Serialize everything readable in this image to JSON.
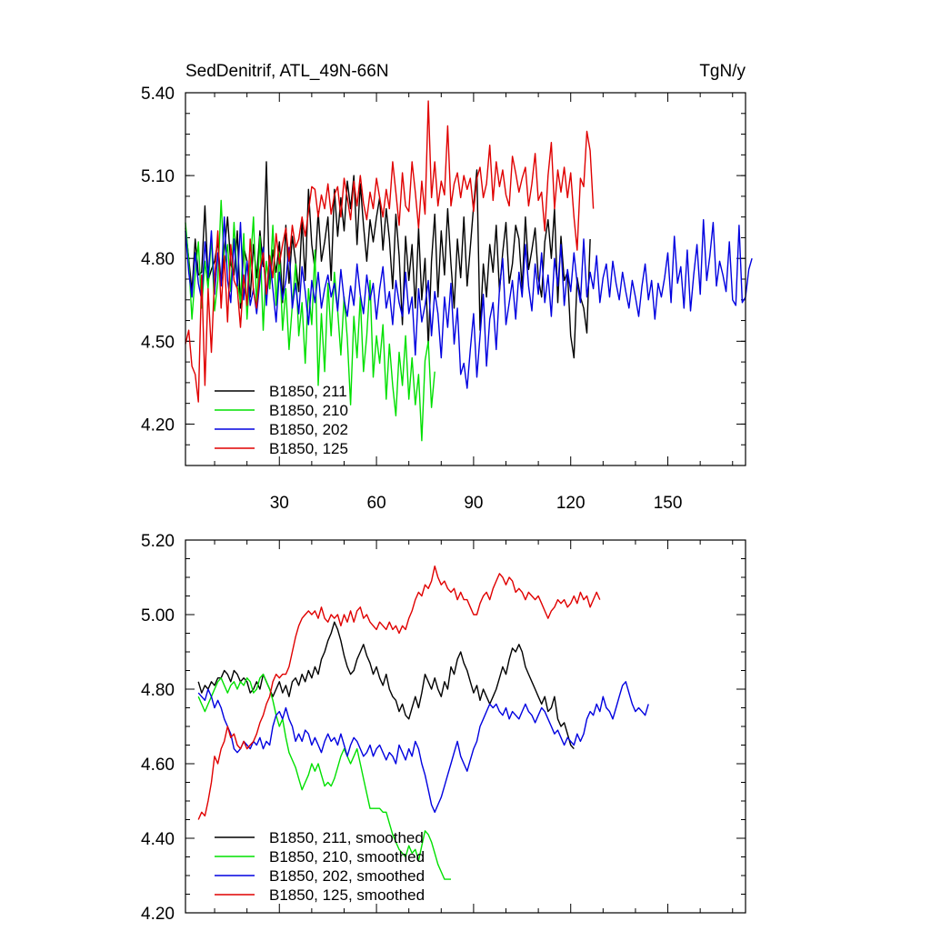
{
  "chart_data": [
    {
      "type": "line",
      "title": "SedDenitrif, ATL_49N-66N",
      "units": "TgN/y",
      "xlim": [
        1,
        174
      ],
      "ylim": [
        4.05,
        5.4
      ],
      "x_ticks": [
        30,
        60,
        90,
        120,
        150
      ],
      "x_tick_labels": [
        "30",
        "60",
        "90",
        "120",
        "150"
      ],
      "y_ticks": [
        4.2,
        4.5,
        4.8,
        5.1,
        5.4
      ],
      "y_tick_labels": [
        "4.20",
        "4.50",
        "4.80",
        "5.10",
        "5.40"
      ],
      "legend_position": "bottom-left",
      "series": [
        {
          "name": "B1850, 211",
          "color": "#000000",
          "x_start": 1,
          "values": [
            4.91,
            4.8,
            4.68,
            4.87,
            4.74,
            4.75,
            4.99,
            4.72,
            4.76,
            4.79,
            4.86,
            4.71,
            4.83,
            4.95,
            4.78,
            4.74,
            4.9,
            4.62,
            4.84,
            4.79,
            4.66,
            4.85,
            4.73,
            4.9,
            4.77,
            5.15,
            4.69,
            4.83,
            4.75,
            4.86,
            4.64,
            4.92,
            4.71,
            4.88,
            4.79,
            4.68,
            4.94,
            4.72,
            5.05,
            4.85,
            4.76,
            4.97,
            4.79,
            4.86,
            4.95,
            4.72,
            5.05,
            4.88,
            5.02,
            4.9,
            5.08,
            4.98,
            5.1,
            4.85,
            5.07,
            4.92,
            4.79,
            4.94,
            4.86,
            4.95,
            5.02,
            4.83,
            4.98,
            4.87,
            4.69,
            4.96,
            4.81,
            4.56,
            4.88,
            4.72,
            4.85,
            4.62,
            4.91,
            4.65,
            4.8,
            4.48,
            4.79,
            4.96,
            4.66,
            4.9,
            4.74,
            4.98,
            4.78,
            4.62,
            4.87,
            4.73,
            4.95,
            4.7,
            4.84,
            4.99,
            5.12,
            4.54,
            4.78,
            4.66,
            4.85,
            4.75,
            4.92,
            4.68,
            4.82,
            4.93,
            4.71,
            4.78,
            4.92,
            4.87,
            4.69,
            4.95,
            4.76,
            4.83,
            4.91,
            4.73,
            4.66,
            4.86,
            4.94,
            4.8,
            4.98,
            4.64,
            4.88,
            4.72,
            4.75,
            4.52,
            4.44,
            4.73,
            4.66,
            4.62,
            4.53,
            4.87
          ]
        },
        {
          "name": "B1850, 210",
          "color": "#00e000",
          "x_start": 1,
          "values": [
            4.93,
            4.79,
            4.58,
            4.74,
            4.86,
            4.62,
            4.79,
            4.69,
            4.88,
            4.61,
            4.72,
            5.01,
            4.77,
            4.85,
            4.68,
            4.93,
            4.72,
            4.64,
            4.89,
            4.58,
            4.77,
            4.95,
            4.62,
            4.88,
            4.54,
            4.79,
            4.69,
            4.92,
            4.63,
            4.82,
            4.54,
            4.69,
            4.47,
            4.63,
            4.78,
            4.52,
            4.64,
            4.42,
            4.69,
            4.56,
            4.83,
            4.34,
            4.6,
            4.39,
            4.71,
            4.52,
            4.75,
            4.61,
            4.45,
            4.66,
            4.51,
            4.27,
            4.59,
            4.44,
            4.66,
            4.39,
            4.52,
            4.72,
            4.37,
            4.52,
            4.42,
            4.56,
            4.29,
            4.49,
            4.34,
            4.23,
            4.46,
            4.34,
            4.52,
            4.29,
            4.44,
            4.27,
            4.38,
            4.14,
            4.43,
            4.5,
            4.26,
            4.39
          ]
        },
        {
          "name": "B1850, 202",
          "color": "#0000e0",
          "x_start": 1,
          "values": [
            4.9,
            4.75,
            4.66,
            4.82,
            4.71,
            4.65,
            4.86,
            4.73,
            4.9,
            4.67,
            4.82,
            4.7,
            4.95,
            4.72,
            4.64,
            4.87,
            4.7,
            4.93,
            4.65,
            4.79,
            4.63,
            4.69,
            4.6,
            4.72,
            4.84,
            4.63,
            4.8,
            4.69,
            4.57,
            4.75,
            4.65,
            4.72,
            4.84,
            4.62,
            4.71,
            4.6,
            4.77,
            4.68,
            4.56,
            4.72,
            4.64,
            4.75,
            4.62,
            4.69,
            4.74,
            4.66,
            4.71,
            4.61,
            4.76,
            4.65,
            4.59,
            4.7,
            4.63,
            4.78,
            4.67,
            4.6,
            4.74,
            4.65,
            4.71,
            4.58,
            4.69,
            4.77,
            4.62,
            4.68,
            4.56,
            4.72,
            4.64,
            4.59,
            4.75,
            4.6,
            4.66,
            4.45,
            4.69,
            4.57,
            4.63,
            4.72,
            4.52,
            4.68,
            4.6,
            4.44,
            4.66,
            4.55,
            4.71,
            4.49,
            4.62,
            4.38,
            4.42,
            4.33,
            4.47,
            4.6,
            4.37,
            4.52,
            4.67,
            4.41,
            4.58,
            4.64,
            4.47,
            4.69,
            4.8,
            4.56,
            4.64,
            4.72,
            4.58,
            4.75,
            4.66,
            4.85,
            4.7,
            4.61,
            4.78,
            4.67,
            4.82,
            4.64,
            4.74,
            4.59,
            4.8,
            4.7,
            4.85,
            4.63,
            4.76,
            4.68,
            4.82,
            4.71,
            4.64,
            4.87,
            4.66,
            4.75,
            4.69,
            4.81,
            4.64,
            4.73,
            4.78,
            4.66,
            4.79,
            4.71,
            4.65,
            4.75,
            4.68,
            4.62,
            4.72,
            4.66,
            4.59,
            4.7,
            4.78,
            4.65,
            4.72,
            4.58,
            4.71,
            4.66,
            4.73,
            4.82,
            4.64,
            4.88,
            4.71,
            4.77,
            4.62,
            4.83,
            4.61,
            4.74,
            4.85,
            4.67,
            4.94,
            4.72,
            4.81,
            4.93,
            4.7,
            4.79,
            4.74,
            4.68,
            4.86,
            4.65,
            4.63,
            4.92,
            4.64,
            4.66,
            4.76,
            4.8
          ]
        },
        {
          "name": "B1850, 125",
          "color": "#e00000",
          "x_start": 1,
          "values": [
            4.49,
            4.54,
            4.41,
            4.38,
            4.28,
            4.74,
            4.34,
            4.69,
            4.46,
            4.73,
            4.9,
            4.62,
            4.81,
            4.57,
            4.85,
            4.72,
            4.69,
            4.55,
            4.74,
            4.63,
            4.87,
            4.68,
            4.62,
            4.76,
            4.82,
            4.67,
            4.81,
            4.73,
            4.89,
            4.78,
            4.85,
            4.91,
            4.79,
            4.92,
            4.84,
            4.87,
            4.95,
            4.88,
            4.97,
            5.06,
            5.05,
            4.95,
            5.03,
            4.98,
            5.07,
            4.96,
            5.03,
            5.06,
            4.95,
            5.09,
            5.02,
            4.94,
            5.08,
            4.99,
            5.1,
            5.0,
            4.94,
            5.04,
            4.98,
            5.09,
            5.02,
            4.95,
            5.05,
            4.98,
            5.15,
            5.04,
            4.92,
            5.11,
            4.99,
            4.97,
            5.15,
            5.04,
            4.91,
            5.08,
            4.96,
            5.37,
            5.02,
            5.15,
            4.99,
            5.08,
            5.03,
            5.28,
            4.99,
            5.07,
            5.11,
            5.02,
            5.1,
            5.05,
            5.09,
            4.97,
            5.09,
            5.13,
            5.02,
            5.07,
            5.21,
            5.01,
            5.15,
            5.06,
            5.12,
            5.03,
            4.99,
            5.17,
            5.11,
            5.04,
            5.09,
            5.13,
            4.99,
            5.07,
            5.18,
            5.01,
            5.04,
            4.9,
            5.1,
            5.22,
            4.98,
            5.12,
            5.04,
            5.13,
            5.02,
            5.11,
            4.95,
            4.83,
            5.09,
            5.06,
            5.26,
            5.19,
            4.98
          ]
        }
      ]
    },
    {
      "type": "line",
      "xlim": [
        1,
        174
      ],
      "ylim": [
        4.2,
        5.2
      ],
      "x_ticks": [
        30,
        60,
        90,
        120,
        150
      ],
      "y_ticks": [
        4.2,
        4.4,
        4.6,
        4.8,
        5.0,
        5.2
      ],
      "y_tick_labels": [
        "4.20",
        "4.40",
        "4.60",
        "4.80",
        "5.00",
        "5.20"
      ],
      "legend_position": "bottom-left",
      "series": [
        {
          "name": "B1850, 211, smoothed",
          "color": "#000000",
          "x_start": 5,
          "values": [
            4.82,
            4.79,
            4.81,
            4.8,
            4.82,
            4.81,
            4.83,
            4.83,
            4.85,
            4.84,
            4.82,
            4.85,
            4.84,
            4.82,
            4.83,
            4.82,
            4.79,
            4.8,
            4.82,
            4.8,
            4.84,
            4.82,
            4.8,
            4.78,
            4.8,
            4.82,
            4.79,
            4.81,
            4.78,
            4.82,
            4.83,
            4.81,
            4.84,
            4.82,
            4.85,
            4.83,
            4.86,
            4.84,
            4.88,
            4.9,
            4.93,
            4.95,
            4.98,
            4.96,
            4.93,
            4.89,
            4.86,
            4.84,
            4.85,
            4.88,
            4.9,
            4.92,
            4.89,
            4.87,
            4.84,
            4.86,
            4.83,
            4.81,
            4.84,
            4.8,
            4.78,
            4.77,
            4.74,
            4.76,
            4.73,
            4.72,
            4.75,
            4.78,
            4.75,
            4.79,
            4.84,
            4.82,
            4.8,
            4.83,
            4.8,
            4.78,
            4.82,
            4.8,
            4.86,
            4.84,
            4.88,
            4.9,
            4.87,
            4.85,
            4.82,
            4.79,
            4.81,
            4.77,
            4.8,
            4.78,
            4.76,
            4.78,
            4.8,
            4.83,
            4.86,
            4.84,
            4.88,
            4.91,
            4.9,
            4.92,
            4.9,
            4.86,
            4.84,
            4.82,
            4.8,
            4.78,
            4.76,
            4.78,
            4.74,
            4.75,
            4.78,
            4.72,
            4.7,
            4.71,
            4.68,
            4.65,
            4.64
          ]
        },
        {
          "name": "B1850, 210, smoothed",
          "color": "#00e000",
          "x_start": 5,
          "values": [
            4.78,
            4.76,
            4.74,
            4.76,
            4.78,
            4.8,
            4.82,
            4.83,
            4.81,
            4.79,
            4.81,
            4.82,
            4.8,
            4.82,
            4.81,
            4.83,
            4.82,
            4.79,
            4.8,
            4.83,
            4.84,
            4.82,
            4.8,
            4.77,
            4.73,
            4.7,
            4.72,
            4.67,
            4.63,
            4.61,
            4.59,
            4.56,
            4.53,
            4.55,
            4.57,
            4.6,
            4.58,
            4.6,
            4.57,
            4.54,
            4.55,
            4.54,
            4.56,
            4.59,
            4.62,
            4.64,
            4.62,
            4.6,
            4.62,
            4.64,
            4.6,
            4.56,
            4.52,
            4.48,
            4.48,
            4.48,
            4.48,
            4.47,
            4.47,
            4.44,
            4.41,
            4.39,
            4.37,
            4.36,
            4.35,
            4.38,
            4.36,
            4.37,
            4.34,
            4.38,
            4.42,
            4.41,
            4.39,
            4.36,
            4.33,
            4.31,
            4.29,
            4.29,
            4.29
          ]
        },
        {
          "name": "B1850, 202, smoothed",
          "color": "#0000e0",
          "x_start": 5,
          "values": [
            4.79,
            4.78,
            4.77,
            4.8,
            4.78,
            4.75,
            4.77,
            4.75,
            4.72,
            4.7,
            4.68,
            4.64,
            4.63,
            4.64,
            4.66,
            4.65,
            4.64,
            4.66,
            4.65,
            4.67,
            4.64,
            4.66,
            4.65,
            4.7,
            4.73,
            4.74,
            4.72,
            4.75,
            4.72,
            4.7,
            4.66,
            4.68,
            4.66,
            4.69,
            4.68,
            4.65,
            4.67,
            4.65,
            4.63,
            4.66,
            4.68,
            4.66,
            4.67,
            4.65,
            4.68,
            4.65,
            4.62,
            4.65,
            4.67,
            4.66,
            4.64,
            4.62,
            4.63,
            4.65,
            4.62,
            4.64,
            4.65,
            4.63,
            4.61,
            4.63,
            4.62,
            4.6,
            4.65,
            4.63,
            4.61,
            4.64,
            4.62,
            4.66,
            4.64,
            4.6,
            4.57,
            4.53,
            4.49,
            4.47,
            4.49,
            4.51,
            4.54,
            4.57,
            4.6,
            4.63,
            4.66,
            4.62,
            4.6,
            4.58,
            4.61,
            4.64,
            4.66,
            4.7,
            4.72,
            4.74,
            4.76,
            4.75,
            4.76,
            4.74,
            4.73,
            4.75,
            4.72,
            4.74,
            4.73,
            4.72,
            4.74,
            4.76,
            4.74,
            4.73,
            4.71,
            4.73,
            4.75,
            4.74,
            4.72,
            4.7,
            4.68,
            4.69,
            4.67,
            4.65,
            4.67,
            4.66,
            4.65,
            4.68,
            4.66,
            4.68,
            4.72,
            4.74,
            4.73,
            4.76,
            4.74,
            4.78,
            4.75,
            4.74,
            4.72,
            4.75,
            4.78,
            4.81,
            4.82,
            4.79,
            4.76,
            4.74,
            4.75,
            4.74,
            4.73,
            4.76
          ]
        },
        {
          "name": "B1850, 125, smoothed",
          "color": "#e00000",
          "x_start": 5,
          "values": [
            4.45,
            4.47,
            4.46,
            4.5,
            4.55,
            4.62,
            4.6,
            4.64,
            4.66,
            4.7,
            4.67,
            4.68,
            4.65,
            4.64,
            4.66,
            4.64,
            4.65,
            4.66,
            4.68,
            4.71,
            4.73,
            4.76,
            4.78,
            4.82,
            4.84,
            4.83,
            4.84,
            4.84,
            4.86,
            4.9,
            4.94,
            4.97,
            4.99,
            5.0,
            5.01,
            5.0,
            5.01,
            4.99,
            5.02,
            4.99,
            4.98,
            5.0,
            4.99,
            5.0,
            4.97,
            5.0,
            4.98,
            5.01,
            4.98,
            5.01,
            5.02,
            4.99,
            5.0,
            4.98,
            4.97,
            4.96,
            4.98,
            4.97,
            4.96,
            4.98,
            4.96,
            4.97,
            4.95,
            4.97,
            4.96,
            4.99,
            5.01,
            5.04,
            5.06,
            5.05,
            5.08,
            5.07,
            5.09,
            5.13,
            5.1,
            5.08,
            5.09,
            5.07,
            5.06,
            5.07,
            5.04,
            5.06,
            5.04,
            5.04,
            5.02,
            5.0,
            5.0,
            5.03,
            5.05,
            5.06,
            5.04,
            5.07,
            5.09,
            5.11,
            5.1,
            5.08,
            5.1,
            5.09,
            5.06,
            5.07,
            5.06,
            5.04,
            5.06,
            5.05,
            5.04,
            5.05,
            5.03,
            5.01,
            4.99,
            5.01,
            5.02,
            5.04,
            5.03,
            5.04,
            5.02,
            5.03,
            5.05,
            5.03,
            5.06,
            5.04,
            5.05,
            5.02,
            5.04,
            5.06,
            5.04
          ]
        }
      ]
    }
  ]
}
